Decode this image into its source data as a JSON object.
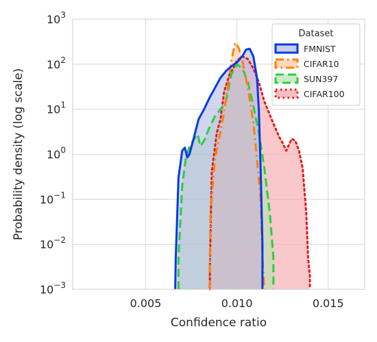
{
  "chart_data": {
    "type": "area",
    "xlabel": "Confidence ratio",
    "ylabel": "Probability density (log scale)",
    "x_ticks": [
      "0.005",
      "0.010",
      "0.015"
    ],
    "x_tick_values": [
      0.005,
      0.01,
      0.015
    ],
    "xlim": [
      0.001,
      0.017
    ],
    "yscale": "log",
    "ylim": [
      0.001,
      1000
    ],
    "y_ticks": [
      {
        "base": "10",
        "exp": "−3",
        "value": 0.001
      },
      {
        "base": "10",
        "exp": "−2",
        "value": 0.01
      },
      {
        "base": "10",
        "exp": "−1",
        "value": 0.1
      },
      {
        "base": "10",
        "exp": "0",
        "value": 1
      },
      {
        "base": "10",
        "exp": "1",
        "value": 10
      },
      {
        "base": "10",
        "exp": "2",
        "value": 100
      },
      {
        "base": "10",
        "exp": "3",
        "value": 1000
      }
    ],
    "grid": true,
    "legend": {
      "title": "Dataset",
      "placement": "top-right"
    },
    "series": [
      {
        "name": "CIFAR100",
        "color": "#e41a1c",
        "fill": "#f4a3a6",
        "linestyle": "dotted",
        "points": [
          [
            0.00852,
            0.001
          ],
          [
            0.00852,
            0.003
          ],
          [
            0.00862,
            0.4
          ],
          [
            0.0088,
            1.5
          ],
          [
            0.0089,
            3
          ],
          [
            0.0091,
            6
          ],
          [
            0.0093,
            25
          ],
          [
            0.0096,
            60
          ],
          [
            0.0098,
            80
          ],
          [
            0.01,
            120
          ],
          [
            0.0103,
            150
          ],
          [
            0.0106,
            130
          ],
          [
            0.0109,
            80
          ],
          [
            0.0112,
            40
          ],
          [
            0.0115,
            15
          ],
          [
            0.0119,
            6
          ],
          [
            0.0123,
            2.5
          ],
          [
            0.0125,
            1.8
          ],
          [
            0.0127,
            1.2
          ],
          [
            0.013,
            2.2
          ],
          [
            0.0132,
            2
          ],
          [
            0.0134,
            1.2
          ],
          [
            0.0136,
            0.5
          ],
          [
            0.0138,
            0.05
          ],
          [
            0.0139,
            0.005
          ],
          [
            0.014,
            0.002
          ],
          [
            0.014,
            0.001
          ]
        ]
      },
      {
        "name": "SUN397",
        "color": "#2ecc40",
        "fill": "#b6e3b0",
        "linestyle": "dashed",
        "points": [
          [
            0.0068,
            0.001
          ],
          [
            0.0068,
            0.005
          ],
          [
            0.007,
            0.2
          ],
          [
            0.0072,
            0.8
          ],
          [
            0.0074,
            1.5
          ],
          [
            0.0076,
            2
          ],
          [
            0.00785,
            2.8
          ],
          [
            0.008,
            1.5
          ],
          [
            0.0082,
            2
          ],
          [
            0.0085,
            4
          ],
          [
            0.0088,
            7
          ],
          [
            0.0091,
            10
          ],
          [
            0.0094,
            15
          ],
          [
            0.0097,
            60
          ],
          [
            0.01,
            100
          ],
          [
            0.0103,
            80
          ],
          [
            0.0106,
            40
          ],
          [
            0.0109,
            12
          ],
          [
            0.0112,
            3
          ],
          [
            0.0115,
            0.5
          ],
          [
            0.0118,
            0.05
          ],
          [
            0.012,
            0.005
          ],
          [
            0.012,
            0.001
          ]
        ]
      },
      {
        "name": "CIFAR10",
        "color": "#ff7f0e",
        "fill": "#fcc89d",
        "linestyle": "dashdot",
        "points": [
          [
            0.0085,
            0.001
          ],
          [
            0.00855,
            0.05
          ],
          [
            0.0088,
            0.8
          ],
          [
            0.0092,
            5
          ],
          [
            0.0095,
            30
          ],
          [
            0.0097,
            120
          ],
          [
            0.0099,
            300
          ],
          [
            0.0101,
            230
          ],
          [
            0.0103,
            120
          ],
          [
            0.0106,
            30
          ],
          [
            0.0109,
            5
          ],
          [
            0.0111,
            0.8
          ],
          [
            0.0113,
            0.1
          ],
          [
            0.0114,
            0.005
          ],
          [
            0.0115,
            0.001
          ]
        ]
      },
      {
        "name": "FMNIST",
        "color": "#0039e6",
        "fill": "#b4b9e6",
        "linestyle": "solid",
        "points": [
          [
            0.00662,
            0.001
          ],
          [
            0.00665,
            0.005
          ],
          [
            0.0068,
            0.3
          ],
          [
            0.007,
            1.2
          ],
          [
            0.00715,
            1.4
          ],
          [
            0.00728,
            0.85
          ],
          [
            0.0074,
            1.0
          ],
          [
            0.0076,
            2
          ],
          [
            0.0079,
            6
          ],
          [
            0.0082,
            10
          ],
          [
            0.0085,
            18
          ],
          [
            0.0088,
            30
          ],
          [
            0.0091,
            50
          ],
          [
            0.0094,
            70
          ],
          [
            0.0097,
            90
          ],
          [
            0.01,
            110
          ],
          [
            0.0103,
            150
          ],
          [
            0.0105,
            210
          ],
          [
            0.0107,
            220
          ],
          [
            0.0109,
            150
          ],
          [
            0.0111,
            50
          ],
          [
            0.0112,
            10
          ],
          [
            0.0113,
            0.5
          ],
          [
            0.0114,
            0.01
          ],
          [
            0.0114,
            0.001
          ]
        ]
      }
    ]
  }
}
